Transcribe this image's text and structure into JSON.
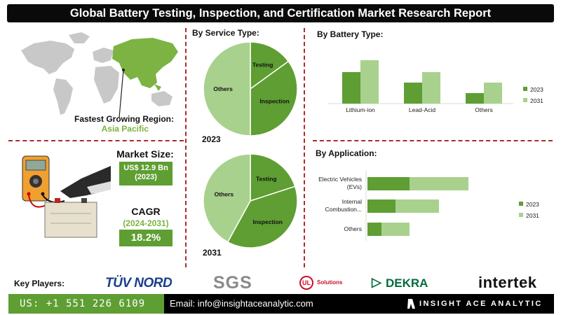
{
  "title": "Global Battery Testing, Inspection, and Certification Market Research Report",
  "region": {
    "label": "Fastest Growing Region:",
    "value": "Asia Pacific"
  },
  "market_size": {
    "label": "Market Size:",
    "value": "US$ 12.9 Bn",
    "year": "(2023)"
  },
  "cagr": {
    "label": "CAGR",
    "period": "(2024-2031)",
    "value": "18.2%"
  },
  "service_section": {
    "title": "By Service Type:"
  },
  "battery_section": {
    "title": "By Battery Type:"
  },
  "application_section": {
    "title": "By Application:"
  },
  "key_players": {
    "label": "Key Players:",
    "logos": [
      "TÜV NORD",
      "SGS",
      "UL",
      "Solutions",
      "DEKRA",
      "intertek"
    ]
  },
  "footer": {
    "phone": "US: +1 551 226 6109",
    "email": "Email: info@insightaceanalytic.com",
    "brand": "INSIGHT ACE ANALYTIC"
  },
  "colors": {
    "dark_green": "#5e9e33",
    "light_green": "#a9d18e",
    "accent_text": "#7cb342",
    "divider": "#b02a2a"
  },
  "chart_data": [
    {
      "type": "pie",
      "title": "By Service Type:",
      "year": "2023",
      "labels": [
        "Testing",
        "Inspection",
        "Others"
      ],
      "values": [
        15,
        35,
        50
      ],
      "colors": [
        "#5e9e33",
        "#5e9e33",
        "#a9d18e"
      ]
    },
    {
      "type": "pie",
      "title": "",
      "year": "2031",
      "labels": [
        "Testing",
        "Inspection",
        "Others"
      ],
      "values": [
        20,
        38,
        42
      ],
      "colors": [
        "#5e9e33",
        "#5e9e33",
        "#a9d18e"
      ]
    },
    {
      "type": "bar",
      "title": "By Battery Type:",
      "categories": [
        "Lithium-ion",
        "Lead-Acid",
        "Others"
      ],
      "series": [
        {
          "name": "2023",
          "values": [
            45,
            30,
            15
          ]
        },
        {
          "name": "2031",
          "values": [
            62,
            45,
            30
          ]
        }
      ],
      "ylim": [
        0,
        70
      ],
      "legend": "right"
    },
    {
      "type": "bar",
      "orientation": "horizontal",
      "stacked": true,
      "title": "By Application:",
      "categories": [
        "Electric Vehicles\n(EVs)",
        "Internal\nCombustion...",
        "Others"
      ],
      "series": [
        {
          "name": "2023",
          "values": [
            30,
            20,
            10
          ]
        },
        {
          "name": "2031",
          "values": [
            42,
            31,
            20
          ]
        }
      ],
      "xlim": [
        0,
        100
      ],
      "legend": "right"
    }
  ]
}
